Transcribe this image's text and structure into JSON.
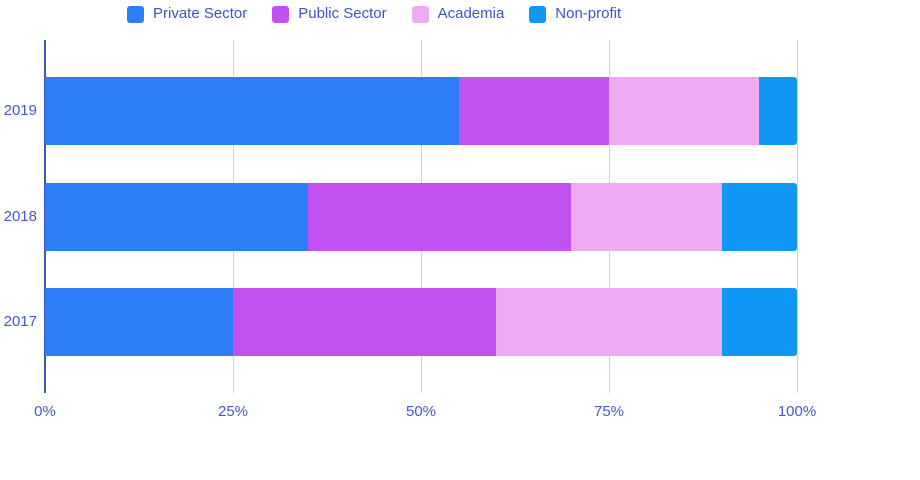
{
  "colors": {
    "private_sector": "#2b7ef5",
    "public_sector": "#c251f2",
    "academia": "#eeabf3",
    "non_profit": "#0e97f3",
    "gridline": "#c9d3f0",
    "axis_line": "#3e55c8",
    "tick_text": "#4458cb",
    "legend_text": "#3d53c6"
  },
  "legend": {
    "items": [
      "Private Sector",
      "Public Sector",
      "Academia",
      "Non-profit"
    ]
  },
  "chart_data": {
    "type": "bar",
    "orientation": "horizontal",
    "stacked": true,
    "categories": [
      "2019",
      "2018",
      "2017"
    ],
    "series": [
      {
        "name": "Private Sector",
        "color": "#2b7ef5",
        "values": [
          55,
          35,
          25
        ]
      },
      {
        "name": "Public Sector",
        "color": "#c251f2",
        "values": [
          20,
          35,
          35
        ]
      },
      {
        "name": "Academia",
        "color": "#eeabf3",
        "values": [
          20,
          20,
          30
        ]
      },
      {
        "name": "Non-profit",
        "color": "#0e97f3",
        "values": [
          5,
          10,
          10
        ]
      }
    ],
    "title": "",
    "xlabel": "",
    "ylabel": "",
    "xlim": [
      0,
      100
    ],
    "x_ticks": [
      {
        "label": "0%",
        "value": 0
      },
      {
        "label": "25%",
        "value": 25
      },
      {
        "label": "50%",
        "value": 50
      },
      {
        "label": "75%",
        "value": 75
      },
      {
        "label": "100%",
        "value": 100
      }
    ],
    "grid": true,
    "legend_position": "top"
  }
}
